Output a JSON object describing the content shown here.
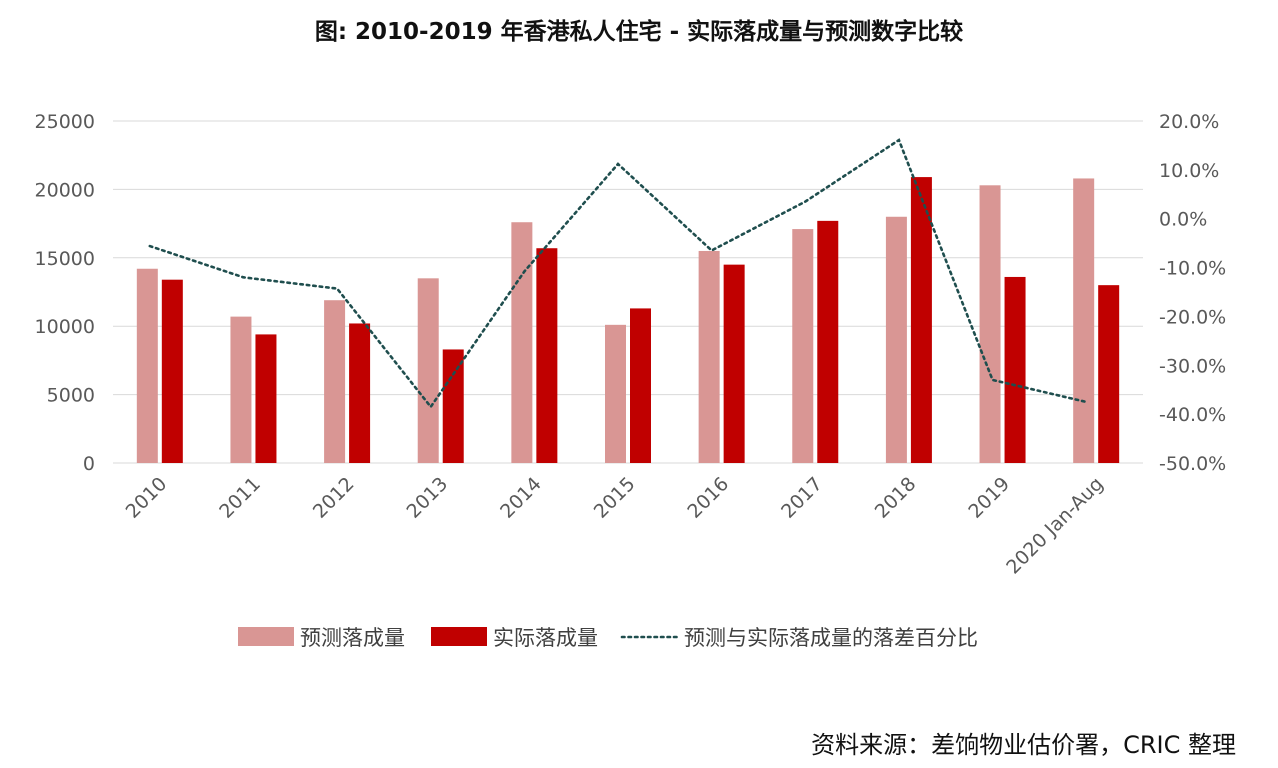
{
  "title": "图: 2010-2019 年香港私人住宅  -  实际落成量与预测数字比较",
  "source": "资料来源：差饷物业估价署，CRIC 整理",
  "colors": {
    "forecast": "#d99694",
    "actual": "#c00000",
    "diff": "#1f4e4e",
    "grid": "#d9d9d9"
  },
  "chart_data": {
    "type": "bar",
    "categories": [
      "2010",
      "2011",
      "2012",
      "2013",
      "2014",
      "2015",
      "2016",
      "2017",
      "2018",
      "2019",
      "2020 Jan-Aug"
    ],
    "series": [
      {
        "name": "预测落成量",
        "type": "bar",
        "axis": "left",
        "values": [
          14200,
          10700,
          11900,
          13500,
          17600,
          10100,
          15500,
          17100,
          18000,
          20300,
          20800
        ]
      },
      {
        "name": "实际落成量",
        "type": "bar",
        "axis": "left",
        "values": [
          13400,
          9400,
          10200,
          8300,
          15700,
          11300,
          14500,
          17700,
          20900,
          13600,
          13000
        ]
      },
      {
        "name": "预测与实际落成量的落差百分比",
        "type": "line",
        "style": "dotted",
        "axis": "right",
        "values": [
          -5.6,
          -12.0,
          -14.3,
          -38.5,
          -10.8,
          11.2,
          -6.5,
          3.5,
          16.1,
          -33.0,
          -37.5
        ]
      }
    ],
    "y_left": {
      "ylim": [
        0,
        25000
      ],
      "ticks": [
        "0",
        "5000",
        "10000",
        "15000",
        "20000",
        "25000"
      ]
    },
    "y_right": {
      "ylim": [
        -50,
        20
      ],
      "ticks": [
        "-50.0%",
        "-40.0%",
        "-30.0%",
        "-20.0%",
        "-10.0%",
        "0.0%",
        "10.0%",
        "20.0%"
      ]
    },
    "grid": true,
    "legend_position": "bottom"
  }
}
